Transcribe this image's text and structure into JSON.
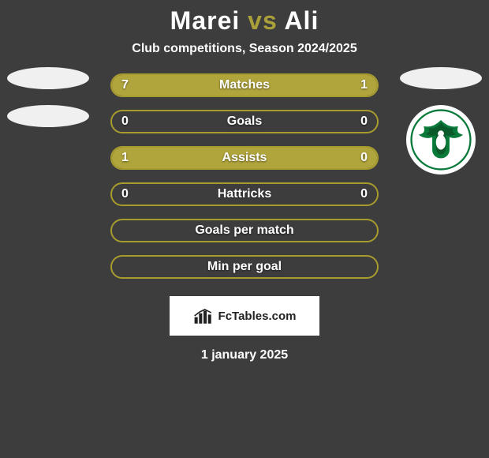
{
  "title": {
    "player1": "Marei",
    "vs": "vs",
    "player2": "Ali"
  },
  "subtitle": "Club competitions, Season 2024/2025",
  "colors": {
    "bar_border": "#a89b2e",
    "bar_fill": "#b0a43c",
    "bar_bg": "#3d3d3d",
    "badge_green": "#0a7a3a",
    "badge_dark": "#0b5a2a"
  },
  "bars": [
    {
      "label": "Matches",
      "left": "7",
      "right": "1",
      "left_pct": 87.5,
      "right_pct": 12.5
    },
    {
      "label": "Goals",
      "left": "0",
      "right": "0",
      "left_pct": 0,
      "right_pct": 0
    },
    {
      "label": "Assists",
      "left": "1",
      "right": "0",
      "left_pct": 100,
      "right_pct": 0
    },
    {
      "label": "Hattricks",
      "left": "0",
      "right": "0",
      "left_pct": 0,
      "right_pct": 0
    },
    {
      "label": "Goals per match",
      "left": "",
      "right": "",
      "left_pct": 0,
      "right_pct": 0
    },
    {
      "label": "Min per goal",
      "left": "",
      "right": "",
      "left_pct": 0,
      "right_pct": 0
    }
  ],
  "logo_text": "FcTables.com",
  "date": "1 january 2025"
}
